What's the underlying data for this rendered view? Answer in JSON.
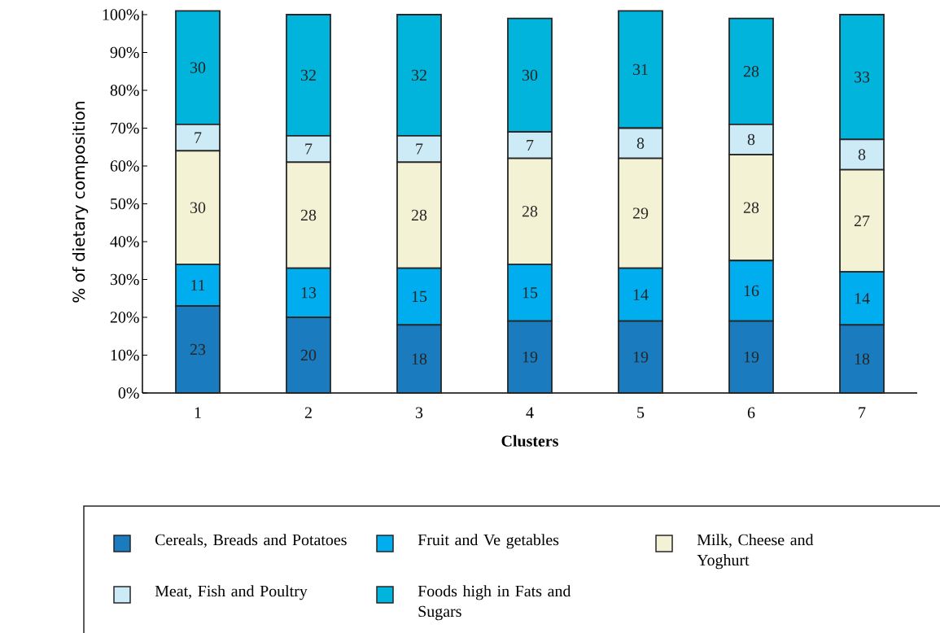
{
  "chart_data": {
    "type": "bar",
    "stacked": true,
    "xlabel": "Clusters",
    "ylabel": "% of dietary composition",
    "categories": [
      "1",
      "2",
      "3",
      "4",
      "5",
      "6",
      "7"
    ],
    "series": [
      {
        "name": "Cereals, Breads and Potatoes",
        "color": "#1a7bbf",
        "values": [
          23,
          20,
          18,
          19,
          19,
          19,
          18
        ]
      },
      {
        "name": "Fruit and Ve getables",
        "color": "#00aeef",
        "values": [
          11,
          13,
          15,
          15,
          14,
          16,
          14
        ]
      },
      {
        "name": "Milk, Cheese and Yoghurt",
        "color": "#f4f2d4",
        "values": [
          30,
          28,
          28,
          28,
          29,
          28,
          27
        ]
      },
      {
        "name": "Meat, Fish and Poultry",
        "color": "#cdeaf7",
        "values": [
          7,
          7,
          7,
          7,
          8,
          8,
          8
        ]
      },
      {
        "name": "Foods high in Fats and Sugars",
        "color": "#00b4dc",
        "values": [
          30,
          32,
          32,
          30,
          31,
          28,
          33
        ]
      }
    ],
    "ylim": [
      0,
      101
    ],
    "yticks": [
      {
        "value": 0,
        "label": "0%"
      },
      {
        "value": 10,
        "label": "10%"
      },
      {
        "value": 20,
        "label": "20%"
      },
      {
        "value": 30,
        "label": "30%"
      },
      {
        "value": 40,
        "label": "40%"
      },
      {
        "value": 50,
        "label": "50%"
      },
      {
        "value": 60,
        "label": "60%"
      },
      {
        "value": 70,
        "label": "70%"
      },
      {
        "value": 80,
        "label": "80%"
      },
      {
        "value": 90,
        "label": "90%"
      },
      {
        "value": 100,
        "label": "100%"
      }
    ],
    "data_labels": true,
    "legend": "bottom",
    "grid": false
  }
}
